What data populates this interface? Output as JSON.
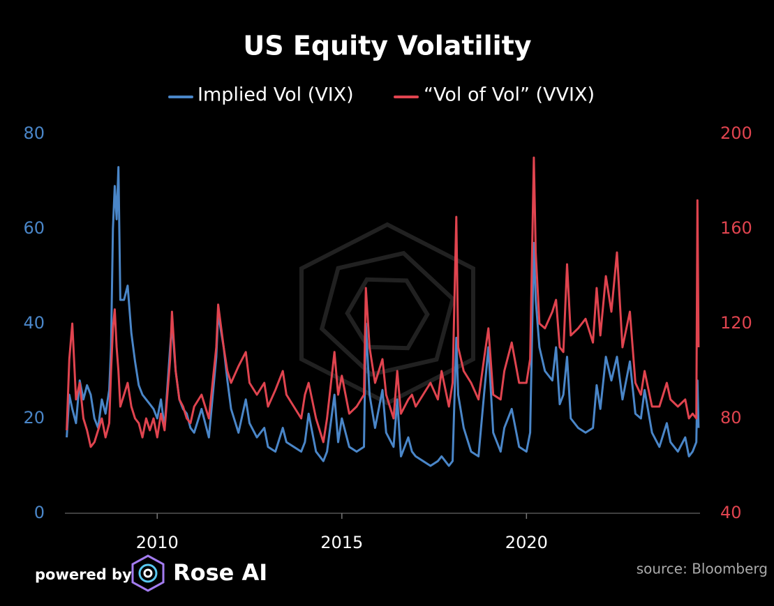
{
  "chart_data": {
    "type": "line",
    "title": "US Equity Volatility",
    "source": "source: Bloomberg",
    "branding": {
      "prefix": "powered by",
      "name": "Rose AI"
    },
    "x": [
      2007.55,
      2007.62,
      2007.7,
      2007.8,
      2007.9,
      2008.0,
      2008.1,
      2008.2,
      2008.3,
      2008.4,
      2008.5,
      2008.6,
      2008.7,
      2008.75,
      2008.8,
      2008.85,
      2008.9,
      2008.95,
      2009.0,
      2009.1,
      2009.2,
      2009.3,
      2009.4,
      2009.5,
      2009.6,
      2009.7,
      2009.8,
      2009.9,
      2010.0,
      2010.1,
      2010.2,
      2010.35,
      2010.4,
      2010.5,
      2010.6,
      2010.7,
      2010.8,
      2010.9,
      2011.0,
      2011.2,
      2011.4,
      2011.6,
      2011.65,
      2011.8,
      2011.9,
      2012.0,
      2012.2,
      2012.4,
      2012.5,
      2012.7,
      2012.9,
      2013.0,
      2013.2,
      2013.4,
      2013.5,
      2013.7,
      2013.9,
      2014.0,
      2014.1,
      2014.3,
      2014.5,
      2014.6,
      2014.8,
      2014.9,
      2015.0,
      2015.2,
      2015.4,
      2015.6,
      2015.65,
      2015.75,
      2015.9,
      2016.1,
      2016.2,
      2016.4,
      2016.5,
      2016.6,
      2016.8,
      2016.9,
      2017.0,
      2017.2,
      2017.4,
      2017.6,
      2017.7,
      2017.9,
      2018.0,
      2018.1,
      2018.15,
      2018.3,
      2018.5,
      2018.7,
      2018.85,
      2018.97,
      2019.1,
      2019.3,
      2019.4,
      2019.6,
      2019.8,
      2020.0,
      2020.1,
      2020.2,
      2020.25,
      2020.35,
      2020.5,
      2020.7,
      2020.8,
      2020.9,
      2021.0,
      2021.1,
      2021.2,
      2021.4,
      2021.6,
      2021.8,
      2021.9,
      2022.0,
      2022.15,
      2022.3,
      2022.45,
      2022.6,
      2022.8,
      2022.95,
      2023.1,
      2023.2,
      2023.4,
      2023.6,
      2023.8,
      2023.9,
      2024.1,
      2024.3,
      2024.4,
      2024.5,
      2024.6,
      2024.63,
      2024.66
    ],
    "series": [
      {
        "name": "Implied Vol (VIX)",
        "color": "#4a86c8",
        "axis": "y",
        "values": [
          16,
          25,
          22,
          19,
          28,
          24,
          27,
          25,
          20,
          18,
          24,
          21,
          26,
          35,
          60,
          69,
          62,
          73,
          45,
          45,
          48,
          38,
          32,
          27,
          25,
          24,
          23,
          22,
          20,
          24,
          18,
          35,
          40,
          30,
          24,
          22,
          21,
          18,
          17,
          22,
          16,
          33,
          42,
          35,
          28,
          22,
          17,
          24,
          19,
          16,
          18,
          14,
          13,
          18,
          15,
          14,
          13,
          15,
          21,
          13,
          11,
          13,
          25,
          15,
          20,
          14,
          13,
          14,
          40,
          25,
          18,
          26,
          17,
          14,
          24,
          12,
          16,
          13,
          12,
          11,
          10,
          11,
          12,
          10,
          11,
          37,
          25,
          18,
          13,
          12,
          25,
          35,
          17,
          13,
          18,
          22,
          14,
          13,
          17,
          57,
          45,
          35,
          30,
          28,
          35,
          23,
          25,
          33,
          20,
          18,
          17,
          18,
          27,
          22,
          33,
          28,
          33,
          24,
          32,
          21,
          20,
          26,
          17,
          14,
          19,
          15,
          13,
          16,
          12,
          13,
          15,
          28,
          18
        ]
      },
      {
        "name": "“Vol of Vol” (VVIX)",
        "color": "#e0444f",
        "axis": "y2",
        "values": [
          75,
          105,
          120,
          88,
          95,
          80,
          75,
          68,
          70,
          75,
          80,
          72,
          78,
          100,
          118,
          126,
          110,
          100,
          85,
          90,
          95,
          85,
          80,
          78,
          72,
          80,
          75,
          80,
          72,
          82,
          75,
          105,
          125,
          100,
          88,
          85,
          80,
          78,
          85,
          90,
          80,
          110,
          128,
          110,
          100,
          95,
          102,
          108,
          95,
          90,
          95,
          85,
          92,
          100,
          90,
          85,
          80,
          90,
          95,
          80,
          70,
          80,
          108,
          90,
          98,
          82,
          85,
          90,
          135,
          110,
          95,
          105,
          90,
          80,
          100,
          82,
          88,
          90,
          85,
          90,
          95,
          88,
          100,
          85,
          95,
          165,
          110,
          100,
          95,
          88,
          105,
          118,
          90,
          88,
          100,
          112,
          95,
          95,
          105,
          190,
          150,
          120,
          118,
          125,
          130,
          110,
          108,
          145,
          115,
          118,
          122,
          112,
          135,
          115,
          140,
          125,
          150,
          110,
          125,
          95,
          90,
          100,
          85,
          85,
          95,
          88,
          85,
          88,
          80,
          82,
          80,
          172,
          110
        ]
      }
    ],
    "xlim": [
      2007.5,
      2024.7
    ],
    "xticks": [
      2010,
      2015,
      2020
    ],
    "ylim": [
      0,
      80
    ],
    "yticks": [
      0,
      20,
      40,
      60,
      80
    ],
    "y2lim": [
      40,
      200
    ],
    "y2ticks": [
      40,
      80,
      120,
      160,
      200
    ],
    "legend": "top",
    "grid": false
  }
}
